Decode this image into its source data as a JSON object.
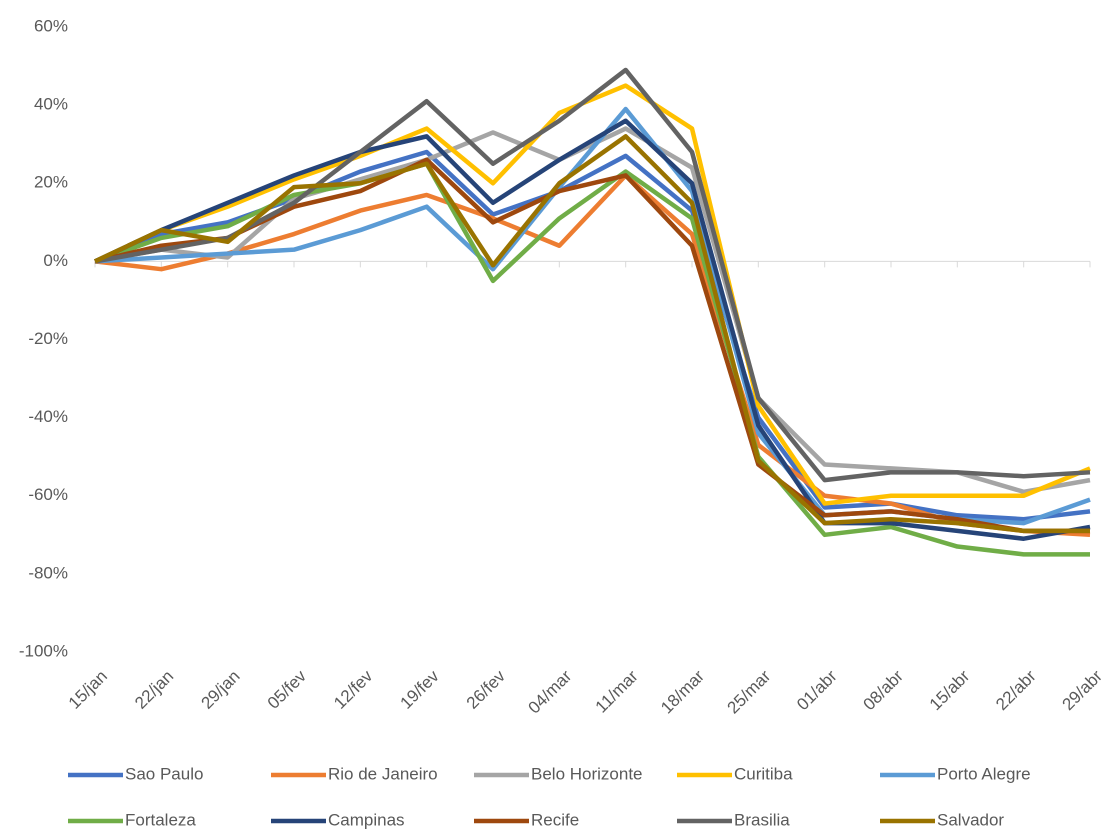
{
  "chart_data": {
    "type": "line",
    "categories": [
      "15/jan",
      "22/jan",
      "29/jan",
      "05/fev",
      "12/fev",
      "19/fev",
      "26/fev",
      "04/mar",
      "11/mar",
      "18/mar",
      "25/mar",
      "01/abr",
      "08/abr",
      "15/abr",
      "22/abr",
      "29/abr"
    ],
    "series": [
      {
        "name": "Sao Paulo",
        "color": "#4472c4",
        "values": [
          0,
          7,
          10,
          16,
          23,
          28,
          12,
          18,
          27,
          13,
          -40,
          -63,
          -62,
          -65,
          -66,
          -64
        ]
      },
      {
        "name": "Rio de Janeiro",
        "color": "#ed7d31",
        "values": [
          0,
          -2,
          2,
          7,
          13,
          17,
          11,
          4,
          22,
          7,
          -47,
          -60,
          -62,
          -67,
          -69,
          -70
        ]
      },
      {
        "name": "Belo Horizonte",
        "color": "#a5a5a5",
        "values": [
          0,
          3,
          1,
          16,
          21,
          26,
          33,
          26,
          34,
          24,
          -35,
          -52,
          -53,
          -54,
          -59,
          -56
        ]
      },
      {
        "name": "Curitiba",
        "color": "#ffc000",
        "values": [
          0,
          8,
          14,
          21,
          27,
          34,
          20,
          38,
          45,
          34,
          -37,
          -62,
          -60,
          -60,
          -60,
          -53
        ]
      },
      {
        "name": "Porto Alegre",
        "color": "#5b9bd5",
        "values": [
          0,
          1,
          2,
          3,
          8,
          14,
          -2,
          19,
          39,
          18,
          -44,
          -65,
          -64,
          -66,
          -67,
          -61
        ]
      },
      {
        "name": "Fortaleza",
        "color": "#70ad47",
        "values": [
          0,
          6,
          9,
          17,
          20,
          25,
          -5,
          11,
          23,
          11,
          -50,
          -70,
          -68,
          -73,
          -75,
          -75
        ]
      },
      {
        "name": "Campinas",
        "color": "#264478",
        "values": [
          0,
          8,
          15,
          22,
          28,
          32,
          15,
          26,
          36,
          20,
          -42,
          -67,
          -67,
          -69,
          -71,
          -68
        ]
      },
      {
        "name": "Recife",
        "color": "#9e480e",
        "values": [
          0,
          4,
          6,
          14,
          18,
          26,
          10,
          18,
          22,
          4,
          -52,
          -65,
          -64,
          -66,
          -69,
          -69
        ]
      },
      {
        "name": "Brasilia",
        "color": "#636363",
        "values": [
          0,
          3,
          6,
          15,
          28,
          41,
          25,
          36,
          49,
          28,
          -35,
          -56,
          -54,
          -54,
          -55,
          -54
        ]
      },
      {
        "name": "Salvador",
        "color": "#997300",
        "values": [
          0,
          8,
          5,
          19,
          20,
          25,
          -1,
          20,
          32,
          15,
          -51,
          -67,
          -66,
          -67,
          -69,
          -69
        ]
      }
    ],
    "ylim": [
      -100,
      60
    ],
    "yticks": [
      {
        "value": -100,
        "label": "-100%"
      },
      {
        "value": -80,
        "label": "-80%"
      },
      {
        "value": -60,
        "label": "-60%"
      },
      {
        "value": -40,
        "label": "-40%"
      },
      {
        "value": -20,
        "label": "-20%"
      },
      {
        "value": 0,
        "label": "0%"
      },
      {
        "value": 20,
        "label": "20%"
      },
      {
        "value": 40,
        "label": "40%"
      },
      {
        "value": 60,
        "label": "60%"
      }
    ],
    "legend": "bottom"
  }
}
